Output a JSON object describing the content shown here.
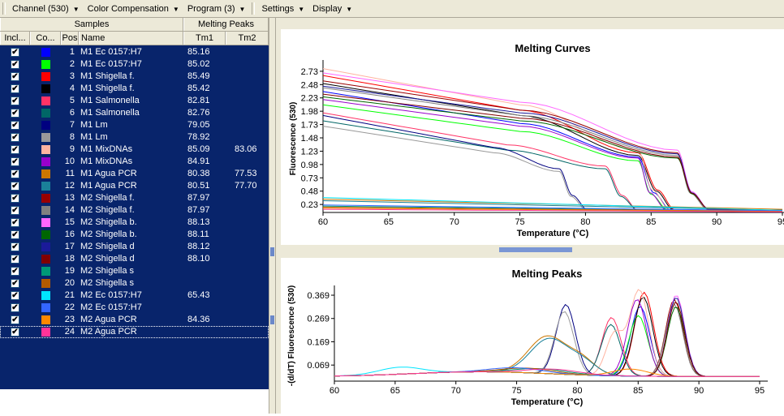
{
  "toolbar": {
    "items": [
      {
        "label": "Channel (530)"
      },
      {
        "label": "Color Compensation"
      },
      {
        "label": "Program (3)"
      },
      {
        "label": "Settings"
      },
      {
        "label": "Display"
      }
    ]
  },
  "table": {
    "group_headers": {
      "samples": "Samples",
      "melting_peaks": "Melting Peaks"
    },
    "columns": {
      "incl": "Incl...",
      "color": "Co...",
      "pos": "Pos",
      "name": "Name",
      "tm1": "Tm1",
      "tm2": "Tm2"
    },
    "check_mark": "✔",
    "rows": [
      {
        "pos": "1",
        "name": "M1 Ec 0157:H7",
        "tm1": "85.16",
        "tm2": "",
        "color": "#0000ff"
      },
      {
        "pos": "2",
        "name": "M1 Ec 0157:H7",
        "tm1": "85.02",
        "tm2": "",
        "color": "#00ff00"
      },
      {
        "pos": "3",
        "name": "M1 Shigella f.",
        "tm1": "85.49",
        "tm2": "",
        "color": "#ff0000"
      },
      {
        "pos": "4",
        "name": "M1 Shigella f.",
        "tm1": "85.42",
        "tm2": "",
        "color": "#000000"
      },
      {
        "pos": "5",
        "name": "M1 Salmonella",
        "tm1": "82.81",
        "tm2": "",
        "color": "#ff3366"
      },
      {
        "pos": "6",
        "name": "M1 Salmonella",
        "tm1": "82.76",
        "tm2": "",
        "color": "#006666"
      },
      {
        "pos": "7",
        "name": "M1 Lm",
        "tm1": "79.05",
        "tm2": "",
        "color": "#000080"
      },
      {
        "pos": "8",
        "name": "M1 Lm",
        "tm1": "78.92",
        "tm2": "",
        "color": "#999999"
      },
      {
        "pos": "9",
        "name": "M1 MixDNAs",
        "tm1": "85.09",
        "tm2": "83.06",
        "color": "#ffb3a0"
      },
      {
        "pos": "10",
        "name": "M1 MixDNAs",
        "tm1": "84.91",
        "tm2": "",
        "color": "#9900cc"
      },
      {
        "pos": "11",
        "name": "M1 Agua PCR",
        "tm1": "80.38",
        "tm2": "77.53",
        "color": "#cc7700"
      },
      {
        "pos": "12",
        "name": "M1 Agua PCR",
        "tm1": "80.51",
        "tm2": "77.70",
        "color": "#1a8099"
      },
      {
        "pos": "13",
        "name": "M2 Shigella f.",
        "tm1": "87.97",
        "tm2": "",
        "color": "#990000"
      },
      {
        "pos": "14",
        "name": "M2 Shigella f.",
        "tm1": "87.97",
        "tm2": "",
        "color": "#808080"
      },
      {
        "pos": "15",
        "name": "M2 Shigella b.",
        "tm1": "88.13",
        "tm2": "",
        "color": "#ff66ff"
      },
      {
        "pos": "16",
        "name": "M2 Shigella b.",
        "tm1": "88.11",
        "tm2": "",
        "color": "#006600"
      },
      {
        "pos": "17",
        "name": "M2 Shigella d",
        "tm1": "88.12",
        "tm2": "",
        "color": "#1a1a99"
      },
      {
        "pos": "18",
        "name": "M2 Shigella d",
        "tm1": "88.10",
        "tm2": "",
        "color": "#800000"
      },
      {
        "pos": "19",
        "name": "M2 Shigella s",
        "tm1": "",
        "tm2": "",
        "color": "#009977"
      },
      {
        "pos": "20",
        "name": "M2 Shigella s",
        "tm1": "",
        "tm2": "",
        "color": "#b35a00"
      },
      {
        "pos": "21",
        "name": "M2 Ec 0157:H7",
        "tm1": "65.43",
        "tm2": "",
        "color": "#00e5ff"
      },
      {
        "pos": "22",
        "name": "M2 Ec 0157:H7",
        "tm1": "",
        "tm2": "",
        "color": "#3366ff"
      },
      {
        "pos": "23",
        "name": "M2 Agua PCR",
        "tm1": "84.36",
        "tm2": "",
        "color": "#ff8800"
      },
      {
        "pos": "24",
        "name": "M2 Agua PCR",
        "tm1": "",
        "tm2": "",
        "color": "#ff3399"
      }
    ]
  },
  "charts": {
    "curves": {
      "title": "Melting Curves",
      "ylabel": "Fluorescence (530)",
      "xlabel": "Temperature (°C)",
      "xticks": [
        "60",
        "65",
        "70",
        "75",
        "80",
        "85",
        "90",
        "95"
      ],
      "yticks": [
        "0.23",
        "0.48",
        "0.73",
        "0.98",
        "1.23",
        "1.48",
        "1.73",
        "1.98",
        "2.23",
        "2.48",
        "2.73"
      ]
    },
    "peaks": {
      "title": "Melting Peaks",
      "ylabel": "-(d/dT) Fluorescence (530)",
      "xlabel": "Temperature (°C)",
      "xticks": [
        "60",
        "65",
        "70",
        "75",
        "80",
        "85",
        "90",
        "95"
      ],
      "yticks": [
        "0.069",
        "0.169",
        "0.269",
        "0.369"
      ]
    }
  },
  "chart_data": [
    {
      "type": "line",
      "title": "Melting Curves",
      "xlabel": "Temperature (°C)",
      "ylabel": "Fluorescence (530)",
      "xlim": [
        60,
        95
      ],
      "ylim": [
        0.08,
        2.85
      ],
      "series": [
        {
          "color": "#0000ff",
          "x": [
            60,
            75,
            84,
            85.2,
            86.5,
            95
          ],
          "y": [
            2.35,
            1.75,
            1.12,
            0.45,
            0.12,
            0.1
          ]
        },
        {
          "color": "#00ff00",
          "x": [
            60,
            75,
            84,
            85.0,
            86.3,
            95
          ],
          "y": [
            2.1,
            1.6,
            1.05,
            0.42,
            0.12,
            0.1
          ]
        },
        {
          "color": "#ff0000",
          "x": [
            60,
            75,
            84,
            85.5,
            86.8,
            95
          ],
          "y": [
            2.65,
            2.0,
            1.2,
            0.5,
            0.13,
            0.1
          ]
        },
        {
          "color": "#000000",
          "x": [
            60,
            75,
            84,
            85.4,
            86.7,
            95
          ],
          "y": [
            2.5,
            1.9,
            1.15,
            0.48,
            0.13,
            0.1
          ]
        },
        {
          "color": "#ff3366",
          "x": [
            60,
            74,
            81.5,
            82.8,
            84.0,
            95
          ],
          "y": [
            1.95,
            1.35,
            0.95,
            0.4,
            0.12,
            0.1
          ]
        },
        {
          "color": "#006666",
          "x": [
            60,
            74,
            81.5,
            82.7,
            84.0,
            95
          ],
          "y": [
            1.8,
            1.25,
            0.9,
            0.38,
            0.12,
            0.1
          ]
        },
        {
          "color": "#000080",
          "x": [
            60,
            73,
            78,
            79.0,
            80.2,
            95
          ],
          "y": [
            1.9,
            1.3,
            0.9,
            0.4,
            0.12,
            0.1
          ]
        },
        {
          "color": "#999999",
          "x": [
            60,
            73,
            78,
            78.9,
            80.1,
            95
          ],
          "y": [
            1.7,
            1.2,
            0.85,
            0.38,
            0.12,
            0.1
          ]
        },
        {
          "color": "#ffb3a0",
          "x": [
            60,
            75,
            84,
            85.1,
            86.4,
            95
          ],
          "y": [
            2.78,
            2.1,
            1.25,
            0.5,
            0.13,
            0.1
          ]
        },
        {
          "color": "#9900cc",
          "x": [
            60,
            75,
            84,
            84.9,
            86.2,
            95
          ],
          "y": [
            2.2,
            1.7,
            1.1,
            0.45,
            0.12,
            0.1
          ]
        },
        {
          "color": "#cc7700",
          "x": [
            60,
            95
          ],
          "y": [
            0.33,
            0.14
          ]
        },
        {
          "color": "#1a8099",
          "x": [
            60,
            95
          ],
          "y": [
            0.3,
            0.12
          ]
        },
        {
          "color": "#990000",
          "x": [
            60,
            75,
            87,
            88.0,
            89.3,
            95
          ],
          "y": [
            2.55,
            2.0,
            1.2,
            0.45,
            0.14,
            0.12
          ]
        },
        {
          "color": "#808080",
          "x": [
            60,
            75,
            87,
            88.0,
            89.3,
            95
          ],
          "y": [
            2.42,
            1.9,
            1.15,
            0.44,
            0.14,
            0.12
          ]
        },
        {
          "color": "#ff66ff",
          "x": [
            60,
            75,
            87,
            88.1,
            89.4,
            95
          ],
          "y": [
            2.7,
            2.15,
            1.25,
            0.47,
            0.14,
            0.12
          ]
        },
        {
          "color": "#006600",
          "x": [
            60,
            75,
            87,
            88.1,
            89.4,
            95
          ],
          "y": [
            2.25,
            1.8,
            1.1,
            0.43,
            0.14,
            0.12
          ]
        },
        {
          "color": "#1a1a99",
          "x": [
            60,
            75,
            87,
            88.1,
            89.4,
            95
          ],
          "y": [
            2.45,
            1.95,
            1.18,
            0.45,
            0.14,
            0.12
          ]
        },
        {
          "color": "#800000",
          "x": [
            60,
            75,
            87,
            88.1,
            89.4,
            95
          ],
          "y": [
            2.3,
            1.85,
            1.12,
            0.44,
            0.14,
            0.12
          ]
        },
        {
          "color": "#009977",
          "x": [
            60,
            95
          ],
          "y": [
            0.2,
            0.1
          ]
        },
        {
          "color": "#b35a00",
          "x": [
            60,
            95
          ],
          "y": [
            0.18,
            0.1
          ]
        },
        {
          "color": "#00e5ff",
          "x": [
            60,
            95
          ],
          "y": [
            0.36,
            0.12
          ]
        },
        {
          "color": "#3366ff",
          "x": [
            60,
            95
          ],
          "y": [
            0.22,
            0.11
          ]
        },
        {
          "color": "#ff8800",
          "x": [
            60,
            95
          ],
          "y": [
            0.16,
            0.1
          ]
        },
        {
          "color": "#ff3399",
          "x": [
            60,
            95
          ],
          "y": [
            0.14,
            0.09
          ]
        }
      ]
    },
    {
      "type": "line",
      "title": "Melting Peaks",
      "xlabel": "Temperature (°C)",
      "ylabel": "-(d/dT) Fluorescence (530)",
      "xlim": [
        60,
        95
      ],
      "ylim": [
        0.0,
        0.39
      ],
      "series": [
        {
          "color": "#0000ff",
          "peaks": [
            [
              85.16,
              0.3,
              1.1
            ]
          ]
        },
        {
          "color": "#00ff00",
          "peaks": [
            [
              85.02,
              0.26,
              1.1
            ]
          ]
        },
        {
          "color": "#ff0000",
          "peaks": [
            [
              85.49,
              0.36,
              1.1
            ]
          ]
        },
        {
          "color": "#000000",
          "peaks": [
            [
              85.42,
              0.34,
              1.1
            ]
          ]
        },
        {
          "color": "#ff3366",
          "peaks": [
            [
              82.81,
              0.25,
              1.1
            ]
          ]
        },
        {
          "color": "#006666",
          "peaks": [
            [
              82.76,
              0.22,
              1.1
            ]
          ]
        },
        {
          "color": "#000080",
          "peaks": [
            [
              79.05,
              0.3,
              1.1
            ]
          ]
        },
        {
          "color": "#999999",
          "peaks": [
            [
              78.92,
              0.27,
              1.1
            ]
          ]
        },
        {
          "color": "#ffb3a0",
          "peaks": [
            [
              85.09,
              0.37,
              1.1
            ],
            [
              83.06,
              0.18,
              1.0
            ]
          ]
        },
        {
          "color": "#9900cc",
          "peaks": [
            [
              84.91,
              0.33,
              1.1
            ]
          ]
        },
        {
          "color": "#cc7700",
          "peaks": [
            [
              80.38,
              0.06,
              1.6
            ],
            [
              77.53,
              0.16,
              2.2
            ]
          ]
        },
        {
          "color": "#1a8099",
          "peaks": [
            [
              80.51,
              0.05,
              1.6
            ],
            [
              77.7,
              0.15,
              2.2
            ]
          ]
        },
        {
          "color": "#990000",
          "peaks": [
            [
              87.97,
              0.33,
              1.0
            ]
          ]
        },
        {
          "color": "#808080",
          "peaks": [
            [
              87.97,
              0.31,
              1.0
            ]
          ]
        },
        {
          "color": "#ff66ff",
          "peaks": [
            [
              88.13,
              0.35,
              1.0
            ]
          ]
        },
        {
          "color": "#006600",
          "peaks": [
            [
              88.11,
              0.3,
              1.0
            ]
          ]
        },
        {
          "color": "#1a1a99",
          "peaks": [
            [
              88.12,
              0.34,
              1.0
            ]
          ]
        },
        {
          "color": "#800000",
          "peaks": [
            [
              88.1,
              0.32,
              1.0
            ]
          ]
        },
        {
          "color": "#009977",
          "peaks": [
            [
              77.0,
              0.02,
              3.0
            ]
          ]
        },
        {
          "color": "#b35a00",
          "peaks": [
            [
              76.0,
              0.02,
              3.0
            ]
          ]
        },
        {
          "color": "#00e5ff",
          "peaks": [
            [
              65.43,
              0.03,
              2.5
            ]
          ]
        },
        {
          "color": "#3366ff",
          "peaks": [
            [
              75.0,
              0.02,
              3.0
            ]
          ]
        },
        {
          "color": "#ff8800",
          "peaks": [
            [
              84.36,
              0.03,
              2.0
            ]
          ]
        },
        {
          "color": "#ff3399",
          "peaks": [
            [
              78.0,
              0.02,
              3.0
            ]
          ]
        }
      ]
    }
  ]
}
